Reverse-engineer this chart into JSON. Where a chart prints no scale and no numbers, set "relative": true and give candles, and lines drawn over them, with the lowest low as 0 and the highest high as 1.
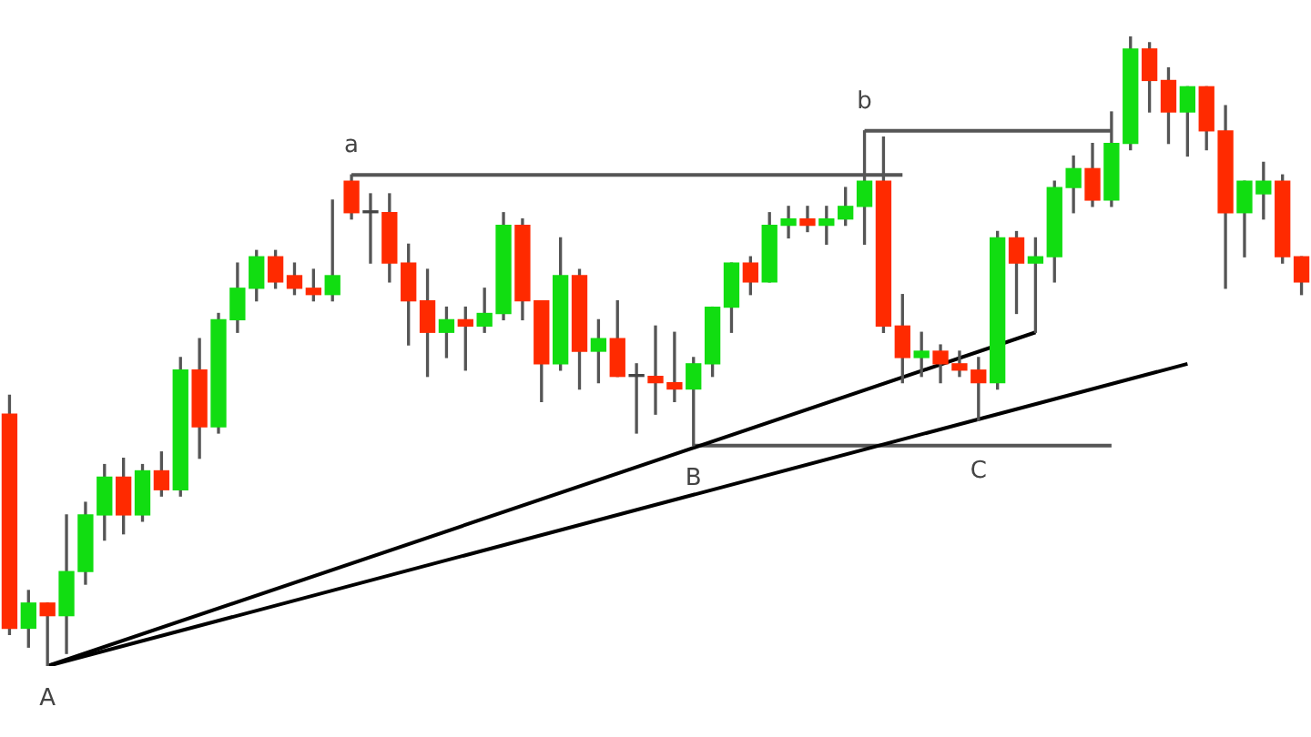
{
  "chart_data": {
    "type": "candlestick",
    "relative": true,
    "categories": [
      null,
      null,
      null,
      null,
      null,
      null,
      null,
      null,
      null,
      null,
      null,
      null,
      null,
      null,
      null,
      null,
      null,
      null,
      null,
      null,
      null,
      null,
      null,
      null,
      null,
      null,
      null,
      null,
      null,
      null,
      null,
      null,
      null,
      null,
      null,
      null,
      null,
      null,
      null,
      null,
      null,
      null,
      null,
      null,
      null,
      null,
      null,
      null,
      null,
      null,
      null,
      null,
      null,
      null,
      null,
      null,
      null,
      null,
      null,
      null,
      null,
      null,
      null,
      null,
      null,
      null,
      null,
      null,
      null
    ],
    "ohlc": [
      [
        0.4,
        0.43,
        0.05,
        0.06
      ],
      [
        0.06,
        0.12,
        0.03,
        0.1
      ],
      [
        0.1,
        0.1,
        0,
        0.08
      ],
      [
        0.08,
        0.24,
        0.02,
        0.15
      ],
      [
        0.15,
        0.26,
        0.13,
        0.24
      ],
      [
        0.24,
        0.32,
        0.2,
        0.3
      ],
      [
        0.3,
        0.33,
        0.21,
        0.24
      ],
      [
        0.24,
        0.32,
        0.23,
        0.31
      ],
      [
        0.31,
        0.34,
        0.27,
        0.28
      ],
      [
        0.28,
        0.49,
        0.27,
        0.47
      ],
      [
        0.47,
        0.52,
        0.33,
        0.38
      ],
      [
        0.38,
        0.56,
        0.37,
        0.55
      ],
      [
        0.55,
        0.64,
        0.53,
        0.6
      ],
      [
        0.6,
        0.66,
        0.58,
        0.65
      ],
      [
        0.65,
        0.66,
        0.6,
        0.61
      ],
      [
        0.62,
        0.64,
        0.59,
        0.6
      ],
      [
        0.6,
        0.63,
        0.58,
        0.59
      ],
      [
        0.59,
        0.74,
        0.58,
        0.62
      ],
      [
        0.77,
        0.78,
        0.71,
        0.72
      ],
      [
        0.72,
        0.75,
        0.64,
        0.72
      ],
      [
        0.72,
        0.75,
        0.61,
        0.64
      ],
      [
        0.64,
        0.67,
        0.51,
        0.58
      ],
      [
        0.58,
        0.63,
        0.46,
        0.53
      ],
      [
        0.53,
        0.57,
        0.49,
        0.55
      ],
      [
        0.55,
        0.57,
        0.47,
        0.54
      ],
      [
        0.54,
        0.6,
        0.53,
        0.56
      ],
      [
        0.56,
        0.72,
        0.55,
        0.7
      ],
      [
        0.7,
        0.71,
        0.55,
        0.58
      ],
      [
        0.58,
        0.58,
        0.42,
        0.48
      ],
      [
        0.48,
        0.68,
        0.47,
        0.62
      ],
      [
        0.62,
        0.63,
        0.44,
        0.5
      ],
      [
        0.5,
        0.55,
        0.45,
        0.52
      ],
      [
        0.52,
        0.58,
        0.46,
        0.46
      ],
      [
        0.46,
        0.48,
        0.37,
        0.46
      ],
      [
        0.46,
        0.54,
        0.4,
        0.45
      ],
      [
        0.45,
        0.53,
        0.42,
        0.44
      ],
      [
        0.44,
        0.49,
        0.35,
        0.48
      ],
      [
        0.48,
        0.57,
        0.46,
        0.57
      ],
      [
        0.57,
        0.64,
        0.53,
        0.64
      ],
      [
        0.64,
        0.65,
        0.59,
        0.61
      ],
      [
        0.61,
        0.72,
        0.61,
        0.7
      ],
      [
        0.7,
        0.73,
        0.68,
        0.71
      ],
      [
        0.71,
        0.73,
        0.69,
        0.7
      ],
      [
        0.7,
        0.73,
        0.67,
        0.71
      ],
      [
        0.71,
        0.76,
        0.7,
        0.73
      ],
      [
        0.73,
        0.85,
        0.67,
        0.77
      ],
      [
        0.77,
        0.84,
        0.53,
        0.54
      ],
      [
        0.54,
        0.59,
        0.45,
        0.49
      ],
      [
        0.49,
        0.53,
        0.46,
        0.5
      ],
      [
        0.5,
        0.51,
        0.45,
        0.48
      ],
      [
        0.48,
        0.5,
        0.46,
        0.47
      ],
      [
        0.47,
        0.49,
        0.39,
        0.45
      ],
      [
        0.45,
        0.69,
        0.44,
        0.68
      ],
      [
        0.68,
        0.69,
        0.56,
        0.64
      ],
      [
        0.64,
        0.68,
        0.53,
        0.65
      ],
      [
        0.65,
        0.77,
        0.61,
        0.76
      ],
      [
        0.76,
        0.81,
        0.72,
        0.79
      ],
      [
        0.79,
        0.83,
        0.73,
        0.74
      ],
      [
        0.74,
        0.88,
        0.73,
        0.83
      ],
      [
        0.83,
        1,
        0.82,
        0.98
      ],
      [
        0.98,
        0.99,
        0.88,
        0.93
      ],
      [
        0.93,
        0.95,
        0.83,
        0.88
      ],
      [
        0.88,
        0.92,
        0.81,
        0.92
      ],
      [
        0.92,
        0.92,
        0.82,
        0.85
      ],
      [
        0.85,
        0.89,
        0.6,
        0.72
      ],
      [
        0.72,
        0.77,
        0.65,
        0.77
      ],
      [
        0.75,
        0.8,
        0.71,
        0.77
      ],
      [
        0.77,
        0.78,
        0.64,
        0.65
      ],
      [
        0.65,
        0.65,
        0.59,
        0.61
      ]
    ],
    "colors": [
      "#ff2a00",
      "#11dd11",
      "#ff2a00",
      "#11dd11",
      "#11dd11",
      "#11dd11",
      "#ff2a00",
      "#11dd11",
      "#ff2a00",
      "#11dd11",
      "#ff2a00",
      "#11dd11",
      "#11dd11",
      "#11dd11",
      "#ff2a00",
      "#ff2a00",
      "#ff2a00",
      "#11dd11",
      "#ff2a00",
      "#444444",
      "#ff2a00",
      "#ff2a00",
      "#ff2a00",
      "#11dd11",
      "#ff2a00",
      "#11dd11",
      "#11dd11",
      "#ff2a00",
      "#ff2a00",
      "#11dd11",
      "#ff2a00",
      "#11dd11",
      "#ff2a00",
      "#444444",
      "#ff2a00",
      "#ff2a00",
      "#11dd11",
      "#11dd11",
      "#11dd11",
      "#ff2a00",
      "#11dd11",
      "#11dd11",
      "#ff2a00",
      "#11dd11",
      "#11dd11",
      "#11dd11",
      "#ff2a00",
      "#ff2a00",
      "#11dd11",
      "#ff2a00",
      "#ff2a00",
      "#ff2a00",
      "#11dd11",
      "#ff2a00",
      "#11dd11",
      "#11dd11",
      "#11dd11",
      "#ff2a00",
      "#11dd11",
      "#11dd11",
      "#ff2a00",
      "#ff2a00",
      "#11dd11",
      "#ff2a00",
      "#ff2a00",
      "#11dd11",
      "#11dd11",
      "#ff2a00",
      "#ff2a00"
    ],
    "series": [
      {
        "type": "line",
        "color": "#000000",
        "values": [
          null,
          null,
          0,
          null,
          null,
          null,
          null,
          null,
          null,
          null,
          null,
          null,
          null,
          null,
          null,
          null,
          null,
          null,
          null,
          null,
          null,
          null,
          null,
          null,
          null,
          null,
          null,
          null,
          null,
          null,
          null,
          null,
          null,
          null,
          null,
          null,
          null,
          null,
          null,
          null,
          null,
          null,
          null,
          null,
          null,
          null,
          null,
          null,
          null,
          null,
          null,
          null,
          null,
          null,
          0.53,
          null,
          null,
          null,
          null,
          null,
          null,
          null,
          null,
          null,
          null,
          null,
          null,
          null,
          null
        ]
      },
      {
        "type": "line",
        "color": "#000000",
        "values": [
          null,
          null,
          0,
          null,
          null,
          null,
          null,
          null,
          null,
          null,
          null,
          null,
          null,
          null,
          null,
          null,
          null,
          null,
          null,
          null,
          null,
          null,
          null,
          null,
          null,
          null,
          null,
          null,
          null,
          null,
          null,
          null,
          null,
          null,
          null,
          null,
          null,
          null,
          null,
          null,
          null,
          null,
          null,
          null,
          null,
          null,
          null,
          null,
          null,
          null,
          null,
          null,
          null,
          null,
          null,
          null,
          null,
          null,
          null,
          null,
          null,
          null,
          0.48,
          null,
          null,
          null,
          null,
          null,
          null
        ]
      },
      {
        "type": "line",
        "color": "#555555",
        "values": [
          null,
          null,
          null,
          null,
          null,
          null,
          null,
          null,
          null,
          null,
          null,
          null,
          null,
          null,
          null,
          null,
          null,
          null,
          0.78,
          null,
          null,
          null,
          null,
          null,
          null,
          null,
          null,
          null,
          null,
          null,
          null,
          null,
          null,
          null,
          null,
          null,
          null,
          null,
          null,
          null,
          null,
          null,
          null,
          null,
          null,
          null,
          null,
          0.78,
          null,
          null,
          null,
          null,
          null,
          null,
          null,
          null,
          null,
          null,
          null,
          null,
          null,
          null,
          null,
          null,
          null,
          null,
          null,
          null,
          null
        ]
      },
      {
        "type": "line",
        "color": "#555555",
        "values": [
          null,
          null,
          null,
          null,
          null,
          null,
          null,
          null,
          null,
          null,
          null,
          null,
          null,
          null,
          null,
          null,
          null,
          null,
          null,
          null,
          null,
          null,
          null,
          null,
          null,
          null,
          null,
          null,
          null,
          null,
          null,
          null,
          null,
          null,
          null,
          null,
          null,
          null,
          null,
          null,
          null,
          null,
          null,
          null,
          null,
          0.85,
          null,
          null,
          null,
          null,
          null,
          null,
          null,
          null,
          null,
          null,
          null,
          null,
          0.85,
          null,
          null,
          null,
          null,
          null,
          null,
          null,
          null,
          null,
          null
        ]
      },
      {
        "type": "line",
        "color": "#555555",
        "values": [
          null,
          null,
          null,
          null,
          null,
          null,
          null,
          null,
          null,
          null,
          null,
          null,
          null,
          null,
          null,
          null,
          null,
          null,
          null,
          null,
          null,
          null,
          null,
          null,
          null,
          null,
          null,
          null,
          null,
          null,
          null,
          null,
          null,
          null,
          null,
          null,
          0.35,
          null,
          null,
          null,
          null,
          null,
          null,
          null,
          null,
          null,
          null,
          null,
          null,
          null,
          null,
          null,
          null,
          null,
          null,
          null,
          null,
          null,
          0.35,
          null,
          null,
          null,
          null,
          null,
          null,
          null,
          null,
          null,
          null
        ]
      }
    ],
    "annotations": [
      {
        "text": "A",
        "y": 0
      },
      {
        "text": "a",
        "y": 0.78
      },
      {
        "text": "B",
        "y": 0.35
      },
      {
        "text": "b",
        "y": 0.85
      },
      {
        "text": "C",
        "y": 0.39
      }
    ]
  }
}
